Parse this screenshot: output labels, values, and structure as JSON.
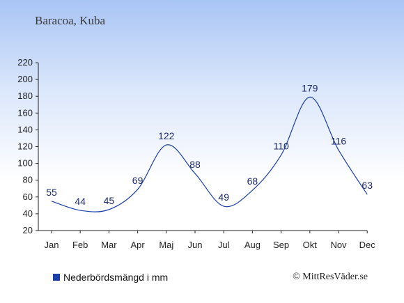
{
  "header": {
    "location": "Baracoa, Kuba"
  },
  "legend": {
    "label": "Nederbördsmängd i mm"
  },
  "footer": {
    "credit": "© MittResVäder.se"
  },
  "colors": {
    "line": "#1b3fa8",
    "label": "#1e2b6b",
    "axis": "#222222"
  },
  "chart_data": {
    "type": "line",
    "categories": [
      "Jan",
      "Feb",
      "Mar",
      "Apr",
      "Maj",
      "Jun",
      "Jul",
      "Aug",
      "Sep",
      "Okt",
      "Nov",
      "Dec"
    ],
    "series": [
      {
        "values": [
          55,
          44,
          45,
          69,
          122,
          88,
          49,
          68,
          110,
          179,
          116,
          63
        ]
      }
    ],
    "data_labels": [
      "55",
      "44",
      "45",
      "69",
      "122",
      "88",
      "49",
      "68",
      "110",
      "179",
      "116",
      "63"
    ],
    "yticks": [
      20,
      40,
      60,
      80,
      100,
      120,
      140,
      160,
      180,
      200,
      220
    ],
    "ylim": [
      20,
      220
    ],
    "grid": false,
    "legend_position": "bottom-left"
  }
}
